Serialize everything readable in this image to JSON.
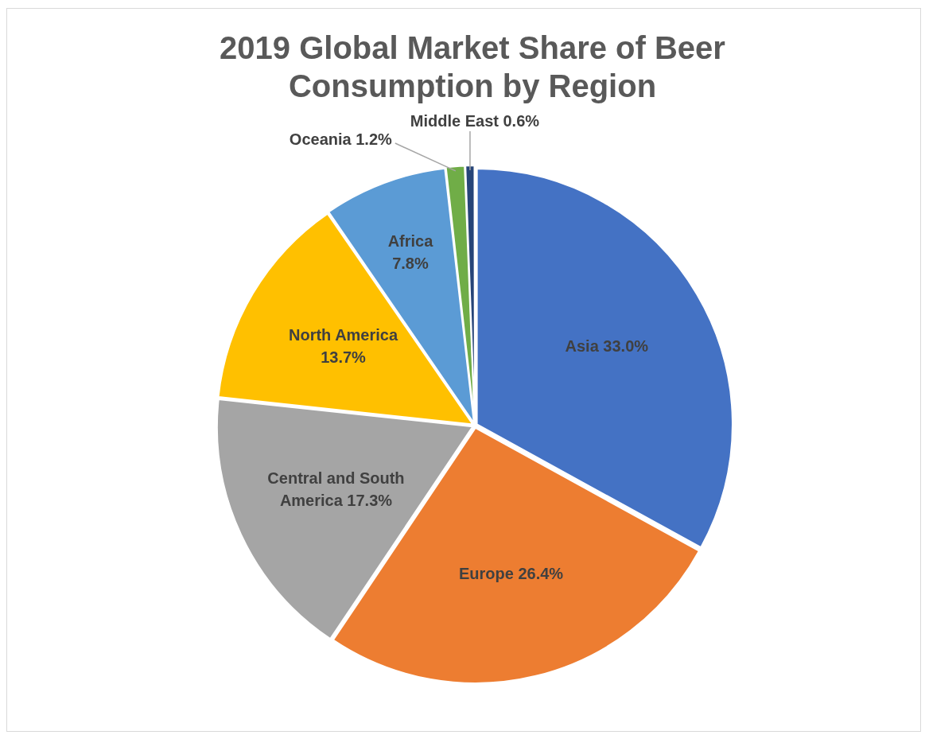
{
  "chart_data": {
    "type": "pie",
    "title": "2019 Global Market Share of Beer Consumption by Region",
    "categories": [
      "Asia",
      "Europe",
      "Central and South America",
      "North America",
      "Africa",
      "Oceania",
      "Middle East"
    ],
    "values": [
      33.0,
      26.4,
      17.3,
      13.7,
      7.8,
      1.2,
      0.6
    ],
    "value_labels": [
      "33.0%",
      "26.4%",
      "17.3%",
      "13.7%",
      "7.8%",
      "1.2%",
      "0.6%"
    ],
    "colors": [
      "#4472c4",
      "#ed7d31",
      "#a5a5a5",
      "#ffc000",
      "#5b9bd5",
      "#70ad47",
      "#264478"
    ],
    "legend": false
  }
}
